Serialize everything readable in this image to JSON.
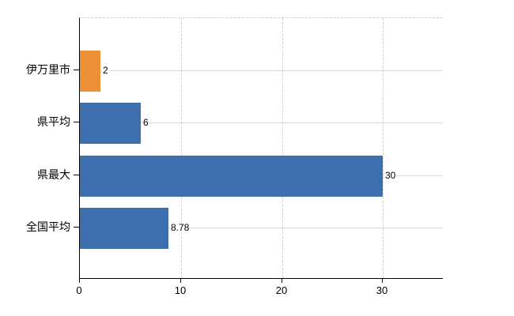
{
  "chart_data": {
    "type": "bar",
    "orientation": "horizontal",
    "title": "",
    "categories": [
      "伊万里市",
      "県平均",
      "県最大",
      "全国平均"
    ],
    "values": [
      2,
      6,
      30,
      8.78
    ],
    "value_labels": [
      "2",
      "6",
      "30",
      "8.78"
    ],
    "bar_colors": [
      "#ed9138",
      "#3d6fae",
      "#3d6fae",
      "#3d6fae"
    ],
    "xlim": [
      0,
      36
    ],
    "x_ticks": [
      0,
      10,
      20,
      30
    ],
    "x_tick_labels": [
      "0",
      "10",
      "20",
      "30"
    ],
    "xlabel": "",
    "ylabel": "",
    "legend": "none",
    "grid": {
      "vertical": "dashed at x ticks 10,20,30",
      "horizontal": "solid light line at each category center",
      "plot_top_border": "dashed"
    }
  },
  "colors": {
    "background": "#ffffff",
    "axis": "#000000",
    "grid_solid": "#d9d9d9",
    "grid_dashed": "#d0d0d0",
    "text": "#000000",
    "bar_blue": "#3d6fae",
    "bar_orange": "#ed9138"
  }
}
